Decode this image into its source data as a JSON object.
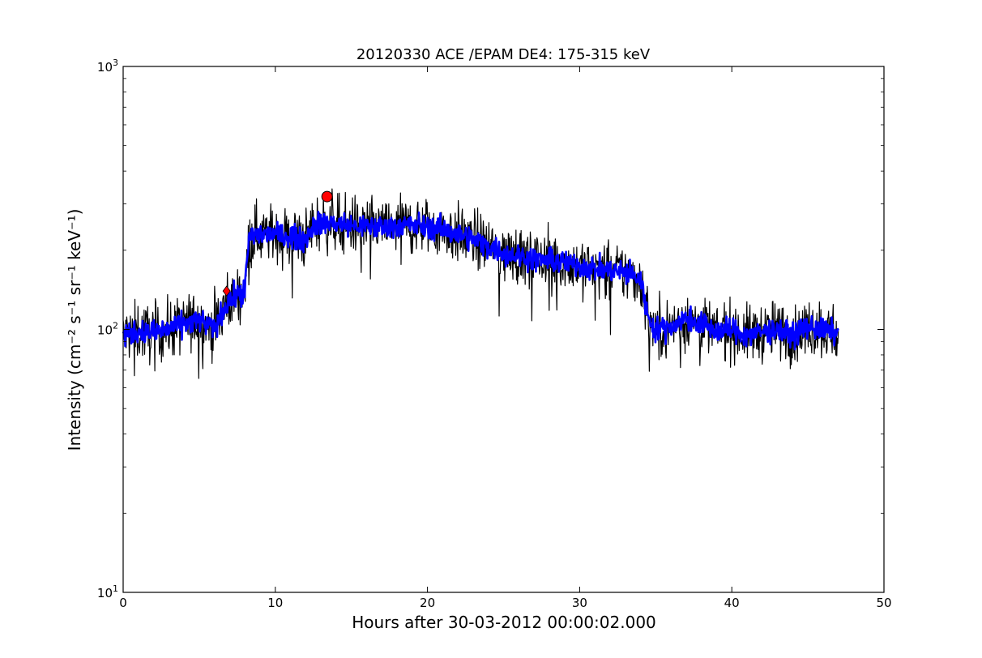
{
  "chart_data": {
    "type": "line",
    "title": "20120330 ACE /EPAM DE4: 175-315 keV",
    "xlabel": "Hours after 30-03-2012 00:00:02.000",
    "ylabel": "Intensity (cm⁻² s⁻¹ sr⁻¹ keV⁻¹)",
    "xlim": [
      0,
      50
    ],
    "ylim": [
      10,
      1000
    ],
    "yscale": "log",
    "x_ticks": [
      "0",
      "10",
      "20",
      "30",
      "40",
      "50"
    ],
    "y_ticks": [
      {
        "base": "10",
        "exp": "1"
      },
      {
        "base": "10",
        "exp": "2"
      },
      {
        "base": "10",
        "exp": "3"
      }
    ],
    "grid": false,
    "legend": "none",
    "series": [
      {
        "style": "raw",
        "color": "#000000",
        "x": [
          0,
          1,
          2,
          3,
          4,
          5,
          6,
          6.8,
          7.5,
          8,
          8.3,
          8.8,
          10,
          11,
          12,
          12.5,
          13.5,
          15,
          17,
          19,
          21,
          23,
          25,
          27,
          29,
          31,
          33,
          34,
          34.5,
          35,
          36,
          37,
          38,
          39,
          40,
          41,
          42,
          43,
          44,
          45,
          46,
          47
        ],
        "y": [
          95,
          98,
          97,
          100,
          105,
          108,
          100,
          125,
          135,
          140,
          225,
          230,
          230,
          225,
          220,
          250,
          255,
          248,
          245,
          250,
          240,
          220,
          195,
          185,
          180,
          170,
          165,
          155,
          110,
          100,
          102,
          110,
          105,
          98,
          100,
          95,
          98,
          100,
          95,
          102,
          100,
          95
        ]
      },
      {
        "style": "smoothed",
        "color": "#0000ff",
        "x": [
          0,
          1,
          2,
          3,
          4,
          5,
          6,
          6.8,
          7.5,
          8,
          8.3,
          8.8,
          10,
          11,
          12,
          12.5,
          13.5,
          15,
          17,
          19,
          21,
          23,
          25,
          27,
          29,
          31,
          33,
          34,
          34.5,
          35,
          36,
          37,
          38,
          39,
          40,
          41,
          42,
          43,
          44,
          45,
          46,
          47
        ],
        "y": [
          95,
          98,
          97,
          100,
          105,
          108,
          100,
          125,
          135,
          140,
          225,
          230,
          230,
          225,
          220,
          250,
          255,
          248,
          245,
          250,
          240,
          220,
          195,
          185,
          180,
          170,
          165,
          155,
          110,
          100,
          102,
          110,
          105,
          98,
          100,
          95,
          98,
          100,
          95,
          102,
          100,
          95
        ]
      }
    ],
    "markers": [
      {
        "kind": "diamond",
        "x": 6.8,
        "y": 140,
        "color": "#ff0000"
      },
      {
        "kind": "circle",
        "x": 13.4,
        "y": 320,
        "color": "#ff0000"
      }
    ],
    "noise": {
      "x_start": 0,
      "x_end": 47,
      "samples": 1400
    }
  }
}
